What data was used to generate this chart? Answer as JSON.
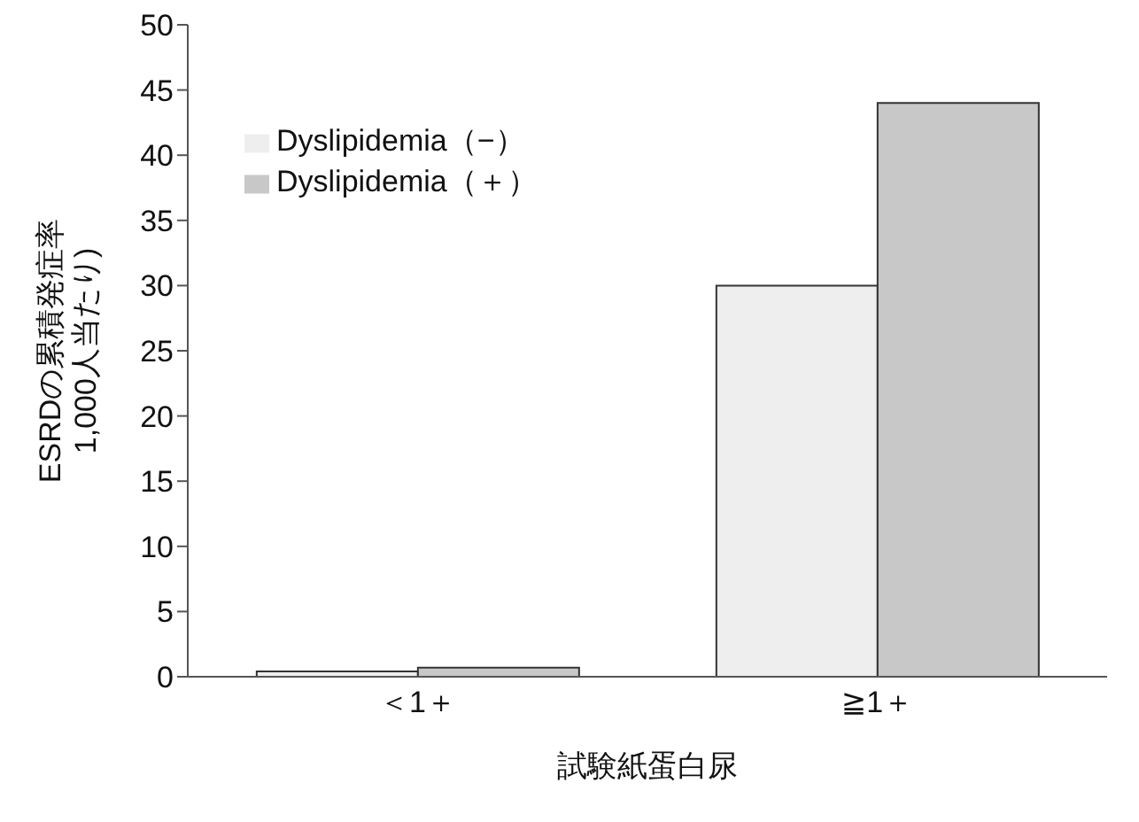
{
  "chart_data": {
    "type": "bar",
    "xlabel": "試験紙蛋白尿",
    "ylabel": "ESRDの累積発症率\n1,000人当たり)",
    "categories": [
      "＜1＋",
      "≧1＋"
    ],
    "series": [
      {
        "name": "Dyslipidemia（−）",
        "color": "#eeeeee",
        "values": [
          0.4,
          30
        ]
      },
      {
        "name": "Dyslipidemia（＋）",
        "color": "#c8c8c8",
        "values": [
          0.7,
          44
        ]
      }
    ],
    "ylim": [
      0,
      50
    ],
    "yticks": [
      0,
      5,
      10,
      15,
      20,
      25,
      30,
      35,
      40,
      45,
      50
    ],
    "grid": false,
    "legend": "top left"
  }
}
